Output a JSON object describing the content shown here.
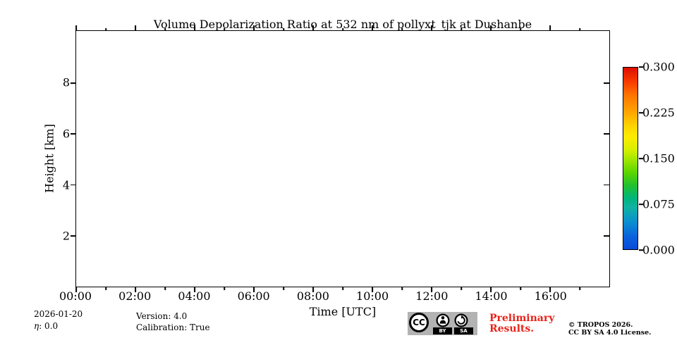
{
  "chart_data": {
    "type": "heatmap",
    "title": "Volume Depolarization Ratio at 532 nm of pollyxt_tjk at Dushanbe",
    "xlabel": "Time [UTC]",
    "ylabel": "Height [km]",
    "x_axis": {
      "range_hours": [
        0,
        18
      ],
      "major_ticks": [
        {
          "hour": 0,
          "label": "00:00"
        },
        {
          "hour": 2,
          "label": "02:00"
        },
        {
          "hour": 4,
          "label": "04:00"
        },
        {
          "hour": 6,
          "label": "06:00"
        },
        {
          "hour": 8,
          "label": "08:00"
        },
        {
          "hour": 10,
          "label": "10:00"
        },
        {
          "hour": 12,
          "label": "12:00"
        },
        {
          "hour": 14,
          "label": "14:00"
        },
        {
          "hour": 16,
          "label": "16:00"
        }
      ],
      "minor_tick_hours": [
        1,
        3,
        5,
        7,
        9,
        11,
        13,
        15,
        17
      ]
    },
    "y_axis": {
      "range_km": [
        0,
        10.05
      ],
      "major_ticks_km": [
        2,
        4,
        6,
        8
      ]
    },
    "values": [],
    "grid": false,
    "colorbar": {
      "vmin": 0.0,
      "vmax": 0.3,
      "ticks": [
        {
          "value": 0.0,
          "label": "0.000"
        },
        {
          "value": 0.075,
          "label": "0.075"
        },
        {
          "value": 0.15,
          "label": "0.150"
        },
        {
          "value": 0.225,
          "label": "0.225"
        },
        {
          "value": 0.3,
          "label": "0.300"
        }
      ],
      "gradient_top_to_bottom": [
        {
          "pos": 0,
          "color": "#dd0e00"
        },
        {
          "pos": 8,
          "color": "#f93d00"
        },
        {
          "pos": 15,
          "color": "#ff7300"
        },
        {
          "pos": 25,
          "color": "#ffa800"
        },
        {
          "pos": 32,
          "color": "#ffd200"
        },
        {
          "pos": 38,
          "color": "#fdeb00"
        },
        {
          "pos": 45,
          "color": "#d8ee00"
        },
        {
          "pos": 50,
          "color": "#a6e800"
        },
        {
          "pos": 58,
          "color": "#5ad400"
        },
        {
          "pos": 65,
          "color": "#20c030"
        },
        {
          "pos": 72,
          "color": "#00b47e"
        },
        {
          "pos": 77,
          "color": "#10b2a2"
        },
        {
          "pos": 85,
          "color": "#0b8fd0"
        },
        {
          "pos": 93,
          "color": "#0a62dc"
        },
        {
          "pos": 100,
          "color": "#0b4ad8"
        }
      ]
    }
  },
  "footer": {
    "date": "2026-01-20",
    "eta_symbol": "η",
    "eta_value": ": 0.0",
    "version": "Version: 4.0",
    "calibration": "Calibration: True",
    "preliminary": {
      "line1": "Preliminary",
      "line2": "Results.",
      "color": "#e8231a"
    },
    "copyright": {
      "line1": "© TROPOS 2026.",
      "line2": "CC BY SA 4.0 License."
    },
    "license_badge": {
      "cc_label": "CC",
      "by_label": "BY",
      "sa_label": "SA",
      "background": "#b3b3b3"
    }
  }
}
